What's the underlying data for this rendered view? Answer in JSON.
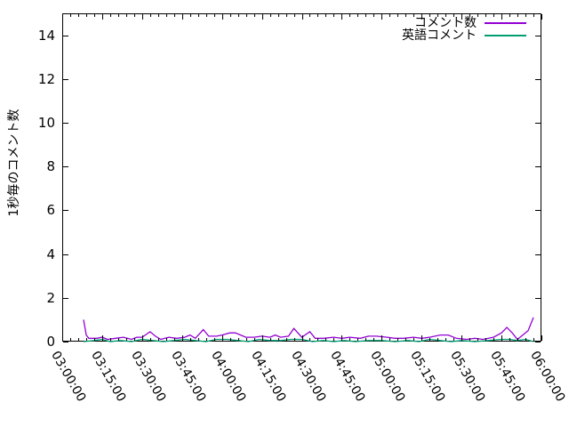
{
  "chart_data": {
    "type": "line",
    "title": "",
    "xlabel": "",
    "ylabel": "1秒毎のコメント数",
    "ylim": [
      0,
      15
    ],
    "y_ticks": [
      0,
      2,
      4,
      6,
      8,
      10,
      12,
      14
    ],
    "x_tick_labels": [
      "03:00:00",
      "03:15:00",
      "03:30:00",
      "03:45:00",
      "04:00:00",
      "04:15:00",
      "04:30:00",
      "04:45:00",
      "05:00:00",
      "05:15:00",
      "05:30:00",
      "05:45:00",
      "06:00:00"
    ],
    "minor_tick_minutes": 3,
    "grid": "off",
    "legend_position": "top-right-inside",
    "background_color": "#ffffff",
    "border_color": "#000000",
    "series": [
      {
        "name": "コメント数",
        "color": "#9400d3",
        "points": [
          [
            "03:08:00",
            1.0
          ],
          [
            "03:09:00",
            0.3
          ],
          [
            "03:10:00",
            0.15
          ],
          [
            "03:13:00",
            0.15
          ],
          [
            "03:15:00",
            0.2
          ],
          [
            "03:17:00",
            0.1
          ],
          [
            "03:20:00",
            0.15
          ],
          [
            "03:23:00",
            0.2
          ],
          [
            "03:26:00",
            0.1
          ],
          [
            "03:28:00",
            0.2
          ],
          [
            "03:30:00",
            0.2
          ],
          [
            "03:33:00",
            0.45
          ],
          [
            "03:35:00",
            0.25
          ],
          [
            "03:37:00",
            0.1
          ],
          [
            "03:40:00",
            0.2
          ],
          [
            "03:43:00",
            0.15
          ],
          [
            "03:46:00",
            0.2
          ],
          [
            "03:48:00",
            0.3
          ],
          [
            "03:50:00",
            0.15
          ],
          [
            "03:53:00",
            0.55
          ],
          [
            "03:55:00",
            0.25
          ],
          [
            "03:58:00",
            0.25
          ],
          [
            "04:00:00",
            0.3
          ],
          [
            "04:03:00",
            0.4
          ],
          [
            "04:05:00",
            0.4
          ],
          [
            "04:07:00",
            0.3
          ],
          [
            "04:09:00",
            0.2
          ],
          [
            "04:12:00",
            0.2
          ],
          [
            "04:15:00",
            0.25
          ],
          [
            "04:18:00",
            0.2
          ],
          [
            "04:20:00",
            0.3
          ],
          [
            "04:22:00",
            0.2
          ],
          [
            "04:25:00",
            0.25
          ],
          [
            "04:27:00",
            0.6
          ],
          [
            "04:30:00",
            0.2
          ],
          [
            "04:33:00",
            0.45
          ],
          [
            "04:35:00",
            0.15
          ],
          [
            "04:38:00",
            0.15
          ],
          [
            "04:42:00",
            0.2
          ],
          [
            "04:45:00",
            0.15
          ],
          [
            "04:48:00",
            0.2
          ],
          [
            "04:52:00",
            0.15
          ],
          [
            "04:55:00",
            0.25
          ],
          [
            "04:58:00",
            0.25
          ],
          [
            "05:02:00",
            0.2
          ],
          [
            "05:05:00",
            0.15
          ],
          [
            "05:08:00",
            0.15
          ],
          [
            "05:12:00",
            0.2
          ],
          [
            "05:15:00",
            0.15
          ],
          [
            "05:18:00",
            0.2
          ],
          [
            "05:22:00",
            0.3
          ],
          [
            "05:25:00",
            0.3
          ],
          [
            "05:28:00",
            0.15
          ],
          [
            "05:32:00",
            0.1
          ],
          [
            "05:35:00",
            0.15
          ],
          [
            "05:38:00",
            0.1
          ],
          [
            "05:42:00",
            0.2
          ],
          [
            "05:45:00",
            0.4
          ],
          [
            "05:47:00",
            0.65
          ],
          [
            "05:49:00",
            0.4
          ],
          [
            "05:51:00",
            0.1
          ],
          [
            "05:53:00",
            0.3
          ],
          [
            "05:55:00",
            0.5
          ],
          [
            "05:57:00",
            1.1
          ]
        ]
      },
      {
        "name": "英語コメント",
        "color": "#009e73",
        "points": [
          [
            "03:08:00",
            0
          ],
          [
            "03:12:00",
            0.05
          ],
          [
            "03:15:00",
            0.1
          ],
          [
            "03:18:00",
            0
          ],
          [
            "03:22:00",
            0.05
          ],
          [
            "03:26:00",
            0
          ],
          [
            "03:30:00",
            0.1
          ],
          [
            "03:34:00",
            0.05
          ],
          [
            "03:38:00",
            0
          ],
          [
            "03:42:00",
            0.05
          ],
          [
            "03:46:00",
            0.1
          ],
          [
            "03:50:00",
            0.05
          ],
          [
            "03:54:00",
            0
          ],
          [
            "03:58:00",
            0.1
          ],
          [
            "04:02:00",
            0.1
          ],
          [
            "04:06:00",
            0.05
          ],
          [
            "04:10:00",
            0
          ],
          [
            "04:14:00",
            0.1
          ],
          [
            "04:18:00",
            0.05
          ],
          [
            "04:22:00",
            0.05
          ],
          [
            "04:26:00",
            0.1
          ],
          [
            "04:30:00",
            0.1
          ],
          [
            "04:34:00",
            0
          ],
          [
            "04:38:00",
            0.05
          ],
          [
            "04:42:00",
            0
          ],
          [
            "04:46:00",
            0.05
          ],
          [
            "04:50:00",
            0
          ],
          [
            "04:55:00",
            0.05
          ],
          [
            "05:00:00",
            0.05
          ],
          [
            "05:05:00",
            0
          ],
          [
            "05:10:00",
            0.05
          ],
          [
            "05:14:00",
            0
          ],
          [
            "05:18:00",
            0.1
          ],
          [
            "05:22:00",
            0.05
          ],
          [
            "05:26:00",
            0
          ],
          [
            "05:30:00",
            0.05
          ],
          [
            "05:35:00",
            0
          ],
          [
            "05:40:00",
            0.05
          ],
          [
            "05:45:00",
            0.1
          ],
          [
            "05:48:00",
            0.1
          ],
          [
            "05:51:00",
            0.05
          ],
          [
            "05:54:00",
            0.1
          ],
          [
            "05:57:00",
            0
          ]
        ]
      }
    ]
  }
}
